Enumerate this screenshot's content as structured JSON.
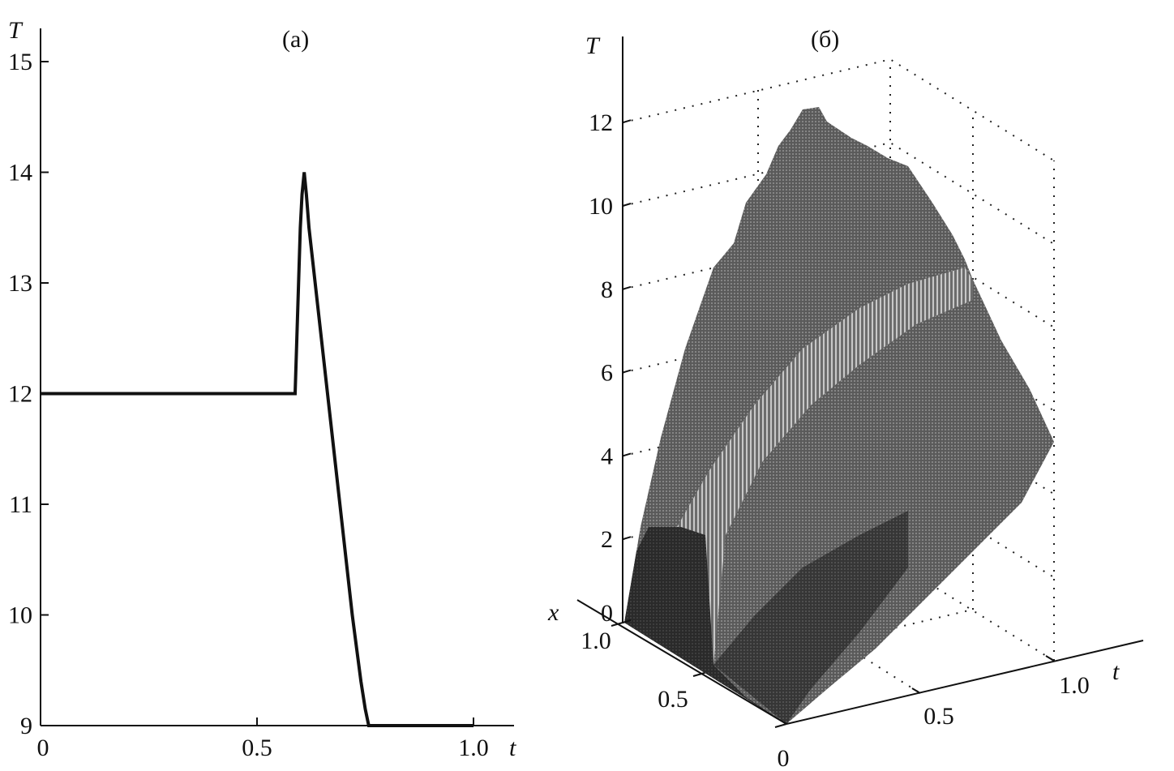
{
  "chart_data": [
    {
      "type": "line",
      "title": "(а)",
      "xlabel": "t",
      "ylabel": "T",
      "xlim": [
        0,
        1.1
      ],
      "ylim": [
        9,
        15.3
      ],
      "xticks": [
        "0",
        "0.5",
        "1.0"
      ],
      "xtick_values": [
        0,
        0.5,
        1.0
      ],
      "yticks": [
        "9",
        "10",
        "11",
        "12",
        "13",
        "14",
        "15"
      ],
      "ytick_values": [
        9,
        10,
        11,
        12,
        13,
        14,
        15
      ],
      "grid": false,
      "series": [
        {
          "x": [
            0,
            0.588,
            0.592,
            0.596,
            0.6,
            0.604,
            0.609,
            0.614,
            0.62,
            0.63,
            0.64,
            0.65,
            0.66,
            0.67,
            0.68,
            0.69,
            0.7,
            0.71,
            0.72,
            0.73,
            0.74,
            0.75,
            0.758,
            1.0
          ],
          "y": [
            12,
            12,
            12.5,
            13.0,
            13.5,
            13.8,
            14.0,
            13.8,
            13.5,
            13.15,
            12.8,
            12.45,
            12.1,
            11.75,
            11.4,
            11.05,
            10.7,
            10.35,
            10.0,
            9.7,
            9.4,
            9.15,
            9.0,
            9.0
          ]
        }
      ]
    },
    {
      "type": "surface",
      "title": "(б)",
      "zlabel": "T",
      "xlabel": "x",
      "tlabel": "t",
      "zticks": [
        "0",
        "2",
        "4",
        "6",
        "8",
        "10",
        "12"
      ],
      "xticks": [
        "0",
        "0.5",
        "1.0"
      ],
      "tticks": [
        "0.5",
        "1.0"
      ],
      "zlim": [
        0,
        12
      ],
      "peak_T": 12.4,
      "grid": true,
      "colormap": "gray"
    }
  ]
}
